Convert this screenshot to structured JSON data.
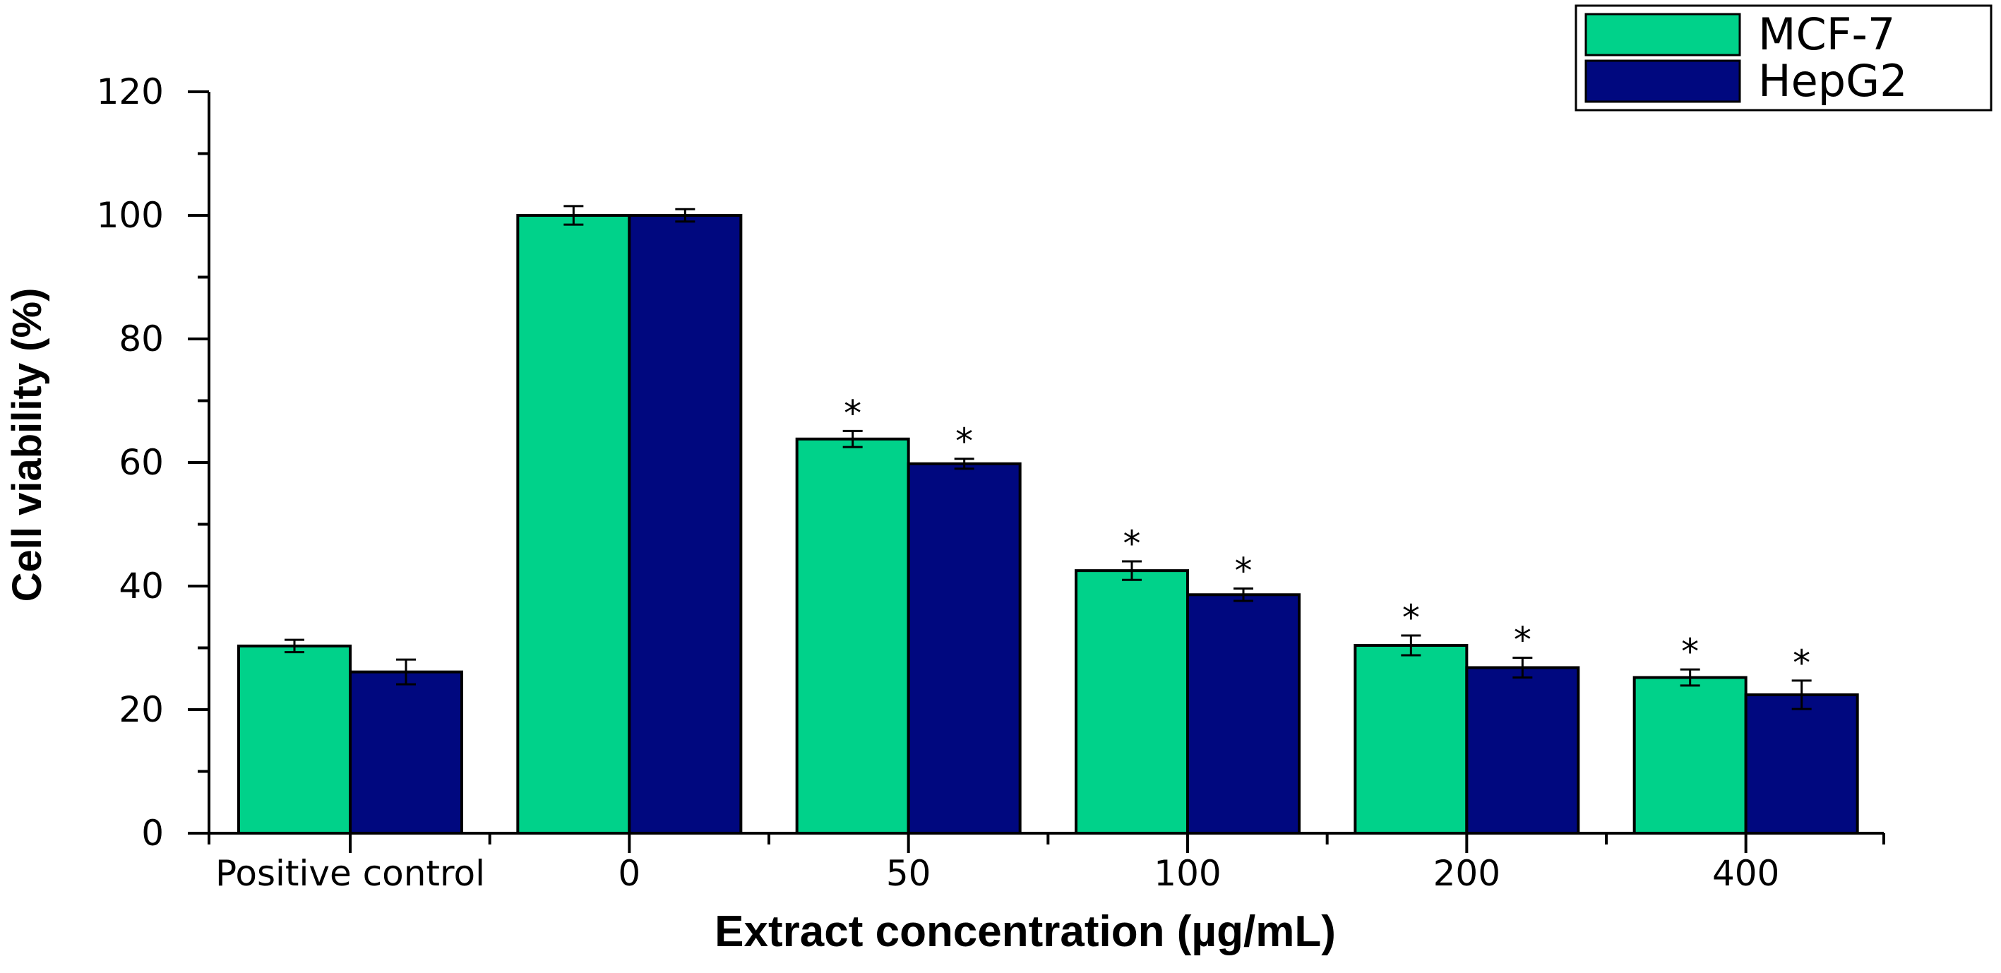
{
  "chart_data": {
    "type": "bar",
    "title": "",
    "xlabel": "Extract concentration (µg/mL)",
    "ylabel": "Cell viability (%)",
    "categories": [
      "Positive control",
      "0",
      "50",
      "100",
      "200",
      "400"
    ],
    "ylim": [
      0,
      120
    ],
    "yticks": [
      "0",
      "20",
      "40",
      "60",
      "80",
      "100",
      "120"
    ],
    "series": [
      {
        "name": "MCF-7",
        "color": "#00d28a",
        "values": [
          30.3,
          100,
          63.8,
          42.5,
          30.4,
          25.2
        ],
        "errors": [
          1.0,
          1.5,
          1.3,
          1.5,
          1.6,
          1.3
        ],
        "significance": [
          "",
          "",
          "*",
          "*",
          "*",
          "*"
        ]
      },
      {
        "name": "HepG2",
        "color": "#00087f",
        "values": [
          26.1,
          100,
          59.8,
          38.6,
          26.8,
          22.4
        ],
        "errors": [
          2.0,
          1.0,
          0.8,
          1.0,
          1.6,
          2.3
        ],
        "significance": [
          "",
          "",
          "*",
          "*",
          "*",
          "*"
        ]
      }
    ],
    "legend": "top-right",
    "grid": false
  }
}
